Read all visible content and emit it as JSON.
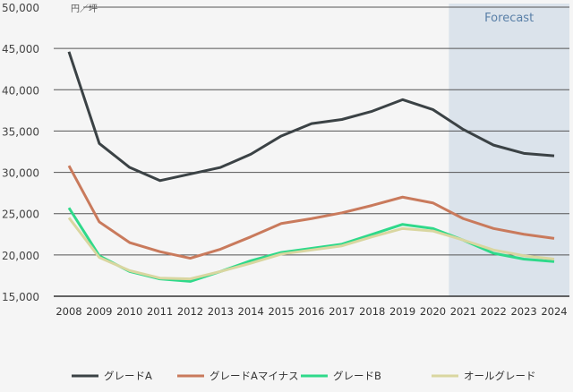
{
  "chart_data": {
    "type": "line",
    "unit_label": "円／坪",
    "forecast_label": "Forecast",
    "forecast_range": [
      "2021",
      "2024"
    ],
    "ylim": [
      15000,
      50000
    ],
    "yticks": [
      15000,
      20000,
      25000,
      30000,
      35000,
      40000,
      45000,
      50000
    ],
    "ytick_labels": [
      "15,000",
      "20,000",
      "25,000",
      "30,000",
      "35,000",
      "40,000",
      "45,000",
      "50,000"
    ],
    "categories": [
      "2008",
      "2009",
      "2010",
      "2011",
      "2012",
      "2013",
      "2014",
      "2015",
      "2016",
      "2017",
      "2018",
      "2019",
      "2020",
      "2021",
      "2022",
      "2023",
      "2024"
    ],
    "grid": "horizontal",
    "legend_position": "bottom",
    "series": [
      {
        "name": "グレードA",
        "color": "#3b4245",
        "values": [
          44600,
          33500,
          30600,
          29000,
          29800,
          30600,
          32200,
          34400,
          35900,
          36400,
          37400,
          38800,
          37600,
          35200,
          33300,
          32300,
          32000
        ]
      },
      {
        "name": "グレードAマイナス",
        "color": "#c97a5c",
        "values": [
          30800,
          24000,
          21500,
          20400,
          19600,
          20700,
          22200,
          23800,
          24400,
          25100,
          26000,
          27000,
          26300,
          24400,
          23200,
          22500,
          22000
        ]
      },
      {
        "name": "グレードB",
        "color": "#2fd98a",
        "values": [
          25700,
          19900,
          18000,
          17100,
          16800,
          18000,
          19300,
          20300,
          20800,
          21300,
          22500,
          23700,
          23200,
          21800,
          20200,
          19500,
          19200
        ]
      },
      {
        "name": "オールグレード",
        "color": "#d9d6a0",
        "values": [
          24500,
          19700,
          18100,
          17200,
          17100,
          18000,
          19000,
          20100,
          20600,
          21100,
          22200,
          23200,
          22900,
          21800,
          20600,
          19900,
          19500
        ]
      }
    ],
    "forecast_color": "#dbe3eb",
    "forecast_text_color": "#5a80a8"
  }
}
